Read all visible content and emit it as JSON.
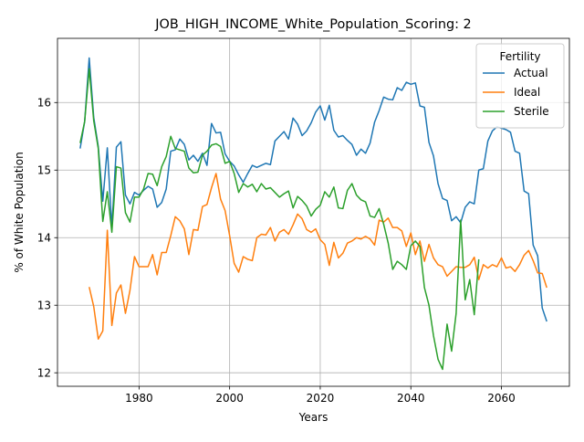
{
  "chart_data": {
    "type": "line",
    "title": "JOB_HIGH_INCOME_White_Population_Scoring: 2",
    "xlabel": "Years",
    "ylabel": "% of White Population",
    "xlim": [
      1962,
      2075
    ],
    "ylim": [
      11.8,
      16.95
    ],
    "xticks": [
      1980,
      2000,
      2020,
      2040,
      2060
    ],
    "yticks": [
      12,
      13,
      14,
      15,
      16
    ],
    "grid": true,
    "legend": {
      "title": "Fertility",
      "placement": "top-right"
    },
    "series": [
      {
        "name": "Actual",
        "color": "#1f77b4",
        "x": [
          1967,
          1968,
          1969,
          1970,
          1971,
          1972,
          1973,
          1974,
          1975,
          1976,
          1977,
          1978,
          1979,
          1980,
          1981,
          1982,
          1983,
          1984,
          1985,
          1986,
          1987,
          1988,
          1989,
          1990,
          1991,
          1992,
          1993,
          1994,
          1995,
          1996,
          1997,
          1998,
          1999,
          2000,
          2001,
          2002,
          2003,
          2004,
          2005,
          2006,
          2007,
          2008,
          2009,
          2010,
          2011,
          2012,
          2013,
          2014,
          2015,
          2016,
          2017,
          2018,
          2019,
          2020,
          2021,
          2022,
          2023,
          2024,
          2025,
          2026,
          2027,
          2028,
          2029,
          2030,
          2031,
          2032,
          2033,
          2034,
          2035,
          2036,
          2037,
          2038,
          2039,
          2040,
          2041,
          2042,
          2043,
          2044,
          2045,
          2046,
          2047,
          2048,
          2049,
          2050,
          2051,
          2052,
          2053,
          2054,
          2055,
          2056,
          2057,
          2058,
          2059,
          2060,
          2061,
          2062,
          2063,
          2064,
          2065,
          2066,
          2067,
          2068,
          2069,
          2070
        ],
        "y": [
          15.32,
          15.72,
          16.66,
          15.78,
          15.35,
          14.54,
          15.33,
          14.15,
          15.34,
          15.42,
          14.63,
          14.5,
          14.67,
          14.63,
          14.7,
          14.76,
          14.72,
          14.45,
          14.52,
          14.72,
          15.28,
          15.3,
          15.46,
          15.38,
          15.15,
          15.22,
          15.13,
          15.25,
          15.07,
          15.69,
          15.55,
          15.56,
          15.24,
          15.13,
          15.06,
          14.93,
          14.82,
          14.95,
          15.07,
          15.04,
          15.07,
          15.1,
          15.08,
          15.43,
          15.5,
          15.57,
          15.46,
          15.77,
          15.68,
          15.51,
          15.58,
          15.7,
          15.86,
          15.95,
          15.74,
          15.96,
          15.59,
          15.49,
          15.51,
          15.44,
          15.38,
          15.22,
          15.31,
          15.25,
          15.4,
          15.71,
          15.88,
          16.08,
          16.05,
          16.04,
          16.22,
          16.18,
          16.3,
          16.27,
          16.29,
          15.95,
          15.93,
          15.41,
          15.21,
          14.8,
          14.58,
          14.55,
          14.25,
          14.31,
          14.22,
          14.45,
          14.53,
          14.5,
          15.0,
          15.02,
          15.43,
          15.58,
          15.64,
          15.62,
          15.6,
          15.56,
          15.28,
          15.25,
          14.69,
          14.65,
          13.89,
          13.73,
          12.96,
          12.76
        ]
      },
      {
        "name": "Ideal",
        "color": "#ff7f0e",
        "x": [
          1969,
          1970,
          1971,
          1972,
          1973,
          1974,
          1975,
          1976,
          1977,
          1978,
          1979,
          1980,
          1981,
          1982,
          1983,
          1984,
          1985,
          1986,
          1987,
          1988,
          1989,
          1990,
          1991,
          1992,
          1993,
          1994,
          1995,
          1996,
          1997,
          1998,
          1999,
          2000,
          2001,
          2002,
          2003,
          2004,
          2005,
          2006,
          2007,
          2008,
          2009,
          2010,
          2011,
          2012,
          2013,
          2014,
          2015,
          2016,
          2017,
          2018,
          2019,
          2020,
          2021,
          2022,
          2023,
          2024,
          2025,
          2026,
          2027,
          2028,
          2029,
          2030,
          2031,
          2032,
          2033,
          2034,
          2035,
          2036,
          2037,
          2038,
          2039,
          2040,
          2041,
          2042,
          2043,
          2044,
          2045,
          2046,
          2047,
          2048,
          2049,
          2050,
          2051,
          2052,
          2053,
          2054,
          2055,
          2056,
          2057,
          2058,
          2059,
          2060,
          2061,
          2062,
          2063,
          2064,
          2065,
          2066,
          2067,
          2068,
          2069,
          2070
        ],
        "y": [
          13.27,
          12.98,
          12.5,
          12.62,
          14.11,
          12.7,
          13.18,
          13.3,
          12.88,
          13.22,
          13.72,
          13.57,
          13.57,
          13.57,
          13.75,
          13.45,
          13.78,
          13.78,
          14.03,
          14.31,
          14.25,
          14.13,
          13.75,
          14.12,
          14.11,
          14.46,
          14.49,
          14.74,
          14.95,
          14.57,
          14.4,
          14.03,
          13.62,
          13.49,
          13.72,
          13.68,
          13.66,
          14.0,
          14.05,
          14.04,
          14.15,
          13.95,
          14.08,
          14.12,
          14.05,
          14.19,
          14.35,
          14.28,
          14.12,
          14.08,
          14.13,
          13.97,
          13.9,
          13.59,
          13.93,
          13.7,
          13.77,
          13.92,
          13.95,
          14.0,
          13.98,
          14.02,
          13.98,
          13.89,
          14.26,
          14.23,
          14.29,
          14.15,
          14.15,
          14.1,
          13.87,
          14.07,
          13.75,
          13.95,
          13.65,
          13.9,
          13.7,
          13.6,
          13.57,
          13.43,
          13.5,
          13.57,
          13.56,
          13.56,
          13.6,
          13.71,
          13.38,
          13.6,
          13.55,
          13.6,
          13.57,
          13.7,
          13.55,
          13.57,
          13.5,
          13.6,
          13.74,
          13.81,
          13.66,
          13.48,
          13.47,
          13.26
        ]
      },
      {
        "name": "Sterile",
        "color": "#2ca02c",
        "x": [
          1967,
          1968,
          1969,
          1970,
          1971,
          1972,
          1973,
          1974,
          1975,
          1976,
          1977,
          1978,
          1979,
          1980,
          1981,
          1982,
          1983,
          1984,
          1985,
          1986,
          1987,
          1988,
          1989,
          1990,
          1991,
          1992,
          1993,
          1994,
          1995,
          1996,
          1997,
          1998,
          1999,
          2000,
          2001,
          2002,
          2003,
          2004,
          2005,
          2006,
          2007,
          2008,
          2009,
          2010,
          2011,
          2012,
          2013,
          2014,
          2015,
          2016,
          2017,
          2018,
          2019,
          2020,
          2021,
          2022,
          2023,
          2024,
          2025,
          2026,
          2027,
          2028,
          2029,
          2030,
          2031,
          2032,
          2033,
          2034,
          2035,
          2036,
          2037,
          2038,
          2039,
          2040,
          2041,
          2042,
          2043,
          2044,
          2045,
          2046,
          2047,
          2048,
          2049,
          2050,
          2051,
          2052,
          2053,
          2054,
          2055
        ],
        "y": [
          15.4,
          15.72,
          16.5,
          15.73,
          15.32,
          14.24,
          14.68,
          14.08,
          15.05,
          15.03,
          14.37,
          14.23,
          14.6,
          14.6,
          14.72,
          14.95,
          14.94,
          14.77,
          15.05,
          15.2,
          15.5,
          15.32,
          15.3,
          15.28,
          15.03,
          14.96,
          14.97,
          15.22,
          15.28,
          15.37,
          15.39,
          15.35,
          15.1,
          15.13,
          14.95,
          14.67,
          14.8,
          14.75,
          14.79,
          14.68,
          14.8,
          14.72,
          14.74,
          14.67,
          14.6,
          14.65,
          14.69,
          14.44,
          14.61,
          14.55,
          14.47,
          14.32,
          14.42,
          14.48,
          14.68,
          14.6,
          14.75,
          14.44,
          14.43,
          14.7,
          14.8,
          14.63,
          14.56,
          14.53,
          14.32,
          14.3,
          14.43,
          14.2,
          13.92,
          13.53,
          13.65,
          13.6,
          13.53,
          13.88,
          13.95,
          13.87,
          13.26,
          13.0,
          12.55,
          12.2,
          12.05,
          12.72,
          12.32,
          12.88,
          14.26,
          13.08,
          13.38,
          12.86,
          13.68
        ]
      }
    ]
  }
}
